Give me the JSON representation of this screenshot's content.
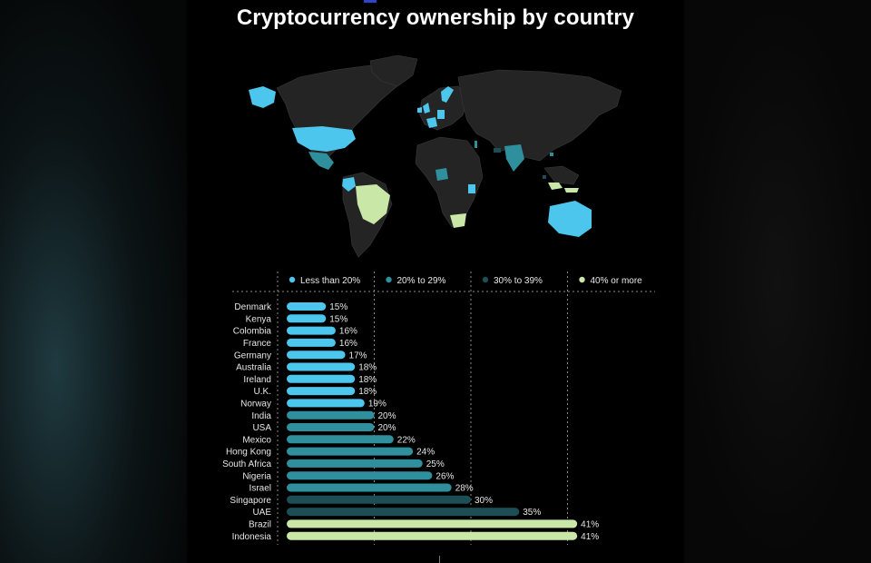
{
  "title": "Cryptocurrency ownership by country",
  "legend": [
    {
      "label": "Less than 20%",
      "color": "#4cc6ec"
    },
    {
      "label": "20% to 29%",
      "color": "#2f8f9c"
    },
    {
      "label": "30% to 39%",
      "color": "#1d4d55"
    },
    {
      "label": "40% or more",
      "color": "#c9e8a7"
    }
  ],
  "colors": {
    "band_1": "#4cc6ec",
    "band_2": "#2f8f9c",
    "band_3": "#1d4d55",
    "band_4": "#c9e8a7",
    "land": "#242424",
    "background": "#000000"
  },
  "chart_data": {
    "type": "bar",
    "orientation": "horizontal",
    "title": "Cryptocurrency ownership by country",
    "categories": [
      "Denmark",
      "Kenya",
      "Colombia",
      "France",
      "Germany",
      "Australia",
      "Ireland",
      "U.K.",
      "Norway",
      "India",
      "USA",
      "Mexico",
      "Hong Kong",
      "South Africa",
      "Nigeria",
      "Israel",
      "Singapore",
      "UAE",
      "Brazil",
      "Indonesia"
    ],
    "values": [
      15,
      15,
      16,
      16,
      17,
      18,
      18,
      18,
      19,
      20,
      20,
      22,
      24,
      25,
      26,
      28,
      30,
      35,
      41,
      41
    ],
    "value_labels": [
      "15%",
      "15%",
      "16%",
      "16%",
      "17%",
      "18%",
      "18%",
      "18%",
      "19%",
      "20%",
      "20%",
      "22%",
      "24%",
      "25%",
      "26%",
      "28%",
      "30%",
      "35%",
      "41%",
      "41%"
    ],
    "bands": [
      "Less than 20%",
      "20% to 29%",
      "30% to 39%",
      "40% or more"
    ],
    "xlim": [
      10,
      50
    ],
    "gridlines_at": [
      20,
      30,
      40
    ],
    "legend_position": "top",
    "xlabel": "",
    "ylabel": ""
  }
}
